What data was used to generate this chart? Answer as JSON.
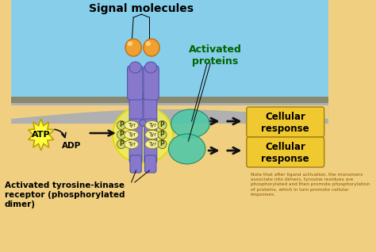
{
  "bg_top_color": "#87CEEB",
  "bg_bottom_color": "#F0D080",
  "membrane_outer_color": "#A0A0A0",
  "membrane_inner_color": "#C8C890",
  "receptor_color": "#8878CC",
  "receptor_edge": "#5555AA",
  "signal_molecule_color": "#F0A030",
  "signal_molecule_edge": "#C07010",
  "signal_highlight": "#FFD070",
  "tyr_fill": "#F5F0A0",
  "tyr_edge": "#888800",
  "p_fill": "#D0D870",
  "p_edge": "#606000",
  "glow_color": "#F0F070",
  "activated_protein_color": "#50C8A8",
  "activated_protein_edge": "#208060",
  "atp_color": "#FFFF40",
  "atp_edge": "#C0A000",
  "cellular_response_color": "#F0C830",
  "cellular_response_edge": "#A08010",
  "arrow_color": "#101010",
  "title": "Signal molecules",
  "label_activated_proteins": "Activated\nproteins",
  "label_activated_receptor": "Activated tyrosine-kinase\nreceptor (phosphorylated\ndimer)",
  "label_atp": "ATP",
  "label_adp": "ADP",
  "label_cellular_response": "Cellular\nresponse",
  "note_text": "Note that after ligand activation, the monomers\nassociate into dimers, tyrosine residues are\nphosphorylated and then promote phosphorylation\nof proteins, which in turn promote cellular\nresponses.",
  "note_color": "#885500"
}
